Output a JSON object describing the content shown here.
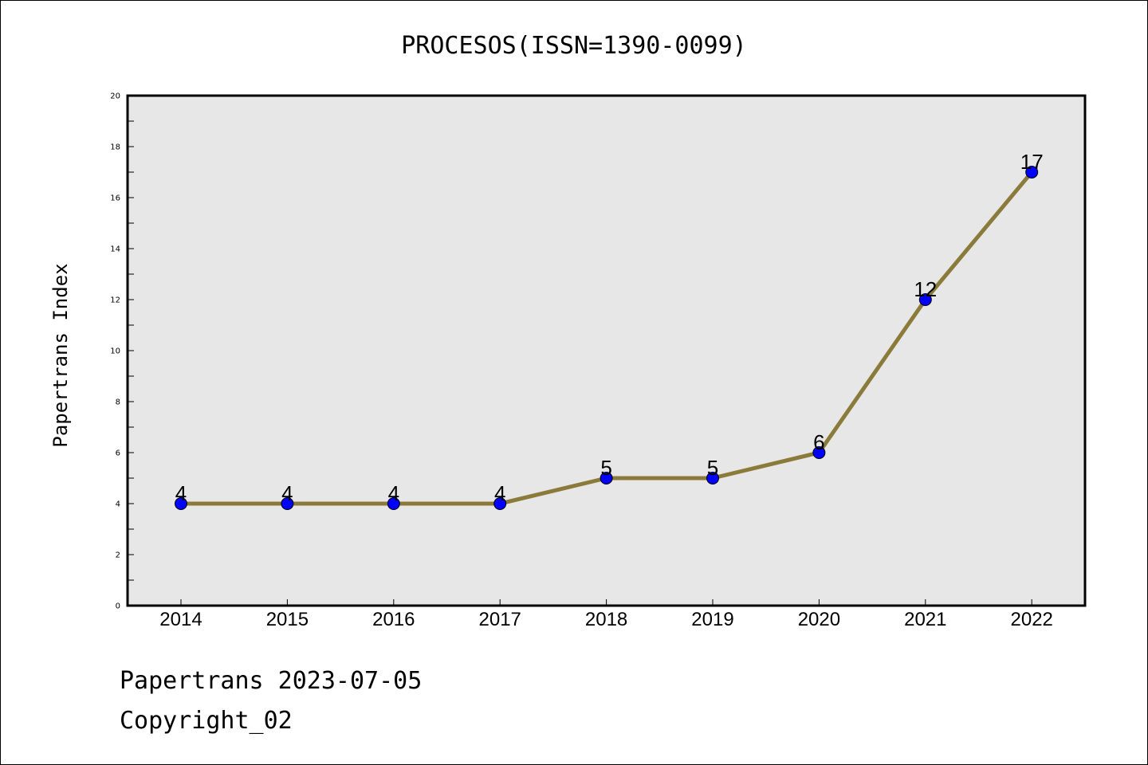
{
  "chart_data": {
    "type": "line",
    "title": "PROCESOS(ISSN=1390-0099)",
    "xlabel": "",
    "ylabel": "Papertrans Index",
    "x": [
      "2014",
      "2015",
      "2016",
      "2017",
      "2018",
      "2019",
      "2020",
      "2021",
      "2022"
    ],
    "values": [
      4,
      4,
      4,
      4,
      5,
      5,
      6,
      12,
      17
    ],
    "ylim": [
      0,
      20
    ],
    "yticks": [
      0,
      2,
      4,
      6,
      8,
      10,
      12,
      14,
      16,
      18,
      20
    ],
    "grid": false,
    "legend": "none",
    "line_color": "#8b7b3a",
    "marker_color": "#0000ff",
    "plot_background": "#e7e7e7"
  },
  "footer": {
    "line1": "Papertrans 2023-07-05",
    "line2": "Copyright_02"
  }
}
